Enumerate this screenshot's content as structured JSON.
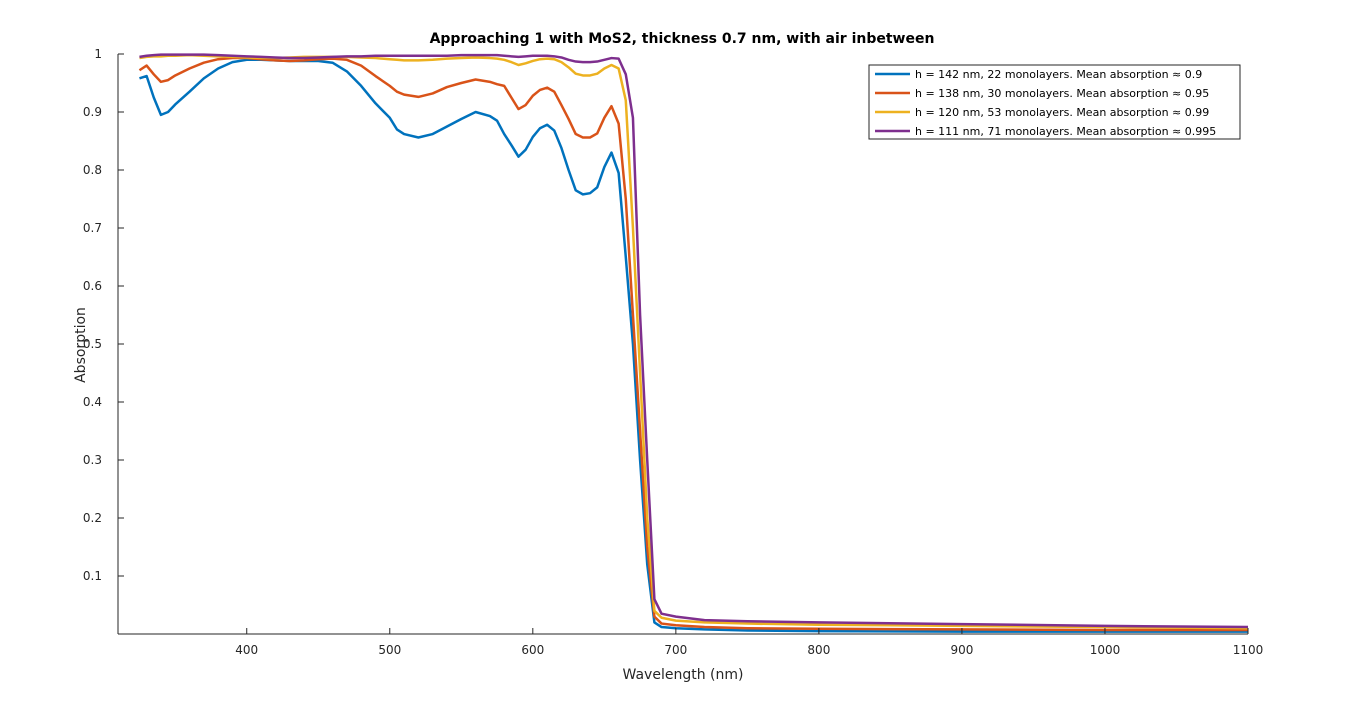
{
  "chart_data": {
    "type": "line",
    "title": "Approaching 1 with MoS2, thickness 0.7 nm, with air inbetween",
    "xlabel": "Wavelength (nm)",
    "ylabel": "Absorption",
    "xlim": [
      310,
      1100
    ],
    "ylim": [
      0,
      1
    ],
    "xticks": [
      400,
      500,
      600,
      700,
      800,
      900,
      1000,
      1100
    ],
    "yticks": [
      0.1,
      0.2,
      0.3,
      0.4,
      0.5,
      0.6,
      0.7,
      0.8,
      0.9,
      1
    ],
    "xtick_labels": [
      "400",
      "500",
      "600",
      "700",
      "800",
      "900",
      "1000",
      "1100"
    ],
    "ytick_labels": [
      "0.1",
      "0.2",
      "0.3",
      "0.4",
      "0.5",
      "0.6",
      "0.7",
      "0.8",
      "0.9",
      "1"
    ],
    "grid": false,
    "legend_position": "top-right",
    "series": [
      {
        "name": "h = 142 nm, 22 monolayers. Mean absorption ≈ 0.9",
        "color": "#0072BD",
        "x": [
          325,
          330,
          335,
          340,
          345,
          350,
          360,
          370,
          380,
          390,
          400,
          410,
          420,
          430,
          440,
          450,
          460,
          470,
          480,
          490,
          500,
          505,
          510,
          520,
          530,
          540,
          550,
          560,
          570,
          575,
          580,
          585,
          590,
          595,
          600,
          605,
          610,
          615,
          620,
          625,
          630,
          635,
          640,
          645,
          650,
          655,
          660,
          665,
          670,
          675,
          680,
          685,
          690,
          700,
          720,
          750,
          800,
          900,
          1000,
          1100
        ],
        "y": [
          0.958,
          0.962,
          0.925,
          0.895,
          0.9,
          0.913,
          0.935,
          0.958,
          0.975,
          0.986,
          0.99,
          0.99,
          0.989,
          0.988,
          0.988,
          0.988,
          0.985,
          0.97,
          0.945,
          0.915,
          0.89,
          0.87,
          0.862,
          0.856,
          0.862,
          0.875,
          0.888,
          0.9,
          0.893,
          0.885,
          0.862,
          0.843,
          0.823,
          0.835,
          0.857,
          0.872,
          0.878,
          0.868,
          0.838,
          0.8,
          0.765,
          0.758,
          0.76,
          0.77,
          0.805,
          0.83,
          0.795,
          0.65,
          0.5,
          0.3,
          0.12,
          0.02,
          0.012,
          0.01,
          0.008,
          0.006,
          0.005,
          0.004,
          0.004,
          0.004
        ]
      },
      {
        "name": "h = 138 nm, 30 monolayers. Mean absorption ≈ 0.95",
        "color": "#D95319",
        "x": [
          325,
          330,
          335,
          340,
          345,
          350,
          360,
          370,
          380,
          390,
          400,
          410,
          420,
          430,
          440,
          450,
          460,
          470,
          480,
          490,
          500,
          505,
          510,
          520,
          530,
          540,
          550,
          560,
          570,
          575,
          580,
          585,
          590,
          595,
          600,
          605,
          610,
          615,
          620,
          625,
          630,
          635,
          640,
          645,
          650,
          655,
          660,
          665,
          670,
          675,
          680,
          685,
          690,
          700,
          720,
          750,
          800,
          900,
          1000,
          1100
        ],
        "y": [
          0.972,
          0.98,
          0.965,
          0.952,
          0.955,
          0.963,
          0.975,
          0.985,
          0.991,
          0.993,
          0.993,
          0.991,
          0.989,
          0.988,
          0.989,
          0.991,
          0.992,
          0.99,
          0.98,
          0.962,
          0.945,
          0.935,
          0.93,
          0.926,
          0.932,
          0.943,
          0.95,
          0.956,
          0.952,
          0.948,
          0.945,
          0.925,
          0.905,
          0.912,
          0.928,
          0.938,
          0.942,
          0.935,
          0.912,
          0.888,
          0.862,
          0.856,
          0.856,
          0.863,
          0.89,
          0.91,
          0.88,
          0.75,
          0.55,
          0.35,
          0.15,
          0.03,
          0.018,
          0.015,
          0.012,
          0.01,
          0.009,
          0.008,
          0.007,
          0.007
        ]
      },
      {
        "name": "h = 120 nm, 53 monolayers. Mean absorption ≈ 0.99",
        "color": "#EDB120",
        "x": [
          325,
          330,
          335,
          340,
          345,
          350,
          360,
          370,
          380,
          390,
          400,
          410,
          420,
          430,
          440,
          450,
          460,
          470,
          480,
          490,
          500,
          505,
          510,
          520,
          530,
          540,
          550,
          560,
          570,
          575,
          580,
          585,
          590,
          595,
          600,
          605,
          610,
          615,
          620,
          625,
          630,
          635,
          640,
          645,
          650,
          655,
          660,
          665,
          670,
          675,
          680,
          685,
          690,
          700,
          720,
          750,
          800,
          900,
          1000,
          1100
        ],
        "y": [
          0.993,
          0.995,
          0.996,
          0.996,
          0.997,
          0.997,
          0.998,
          0.997,
          0.996,
          0.995,
          0.994,
          0.993,
          0.993,
          0.994,
          0.995,
          0.995,
          0.995,
          0.995,
          0.994,
          0.993,
          0.991,
          0.99,
          0.989,
          0.989,
          0.99,
          0.992,
          0.993,
          0.994,
          0.993,
          0.992,
          0.99,
          0.986,
          0.981,
          0.984,
          0.988,
          0.991,
          0.992,
          0.991,
          0.986,
          0.977,
          0.966,
          0.963,
          0.963,
          0.966,
          0.975,
          0.981,
          0.975,
          0.92,
          0.7,
          0.45,
          0.2,
          0.04,
          0.028,
          0.023,
          0.02,
          0.018,
          0.016,
          0.014,
          0.012,
          0.01
        ]
      },
      {
        "name": "h = 111 nm, 71 monolayers. Mean absorption ≈ 0.995",
        "color": "#7E2F8E",
        "x": [
          325,
          330,
          335,
          340,
          345,
          350,
          360,
          370,
          380,
          390,
          400,
          410,
          420,
          430,
          440,
          450,
          460,
          470,
          480,
          490,
          500,
          505,
          510,
          520,
          530,
          540,
          550,
          560,
          570,
          575,
          580,
          585,
          590,
          595,
          600,
          605,
          610,
          615,
          620,
          625,
          630,
          635,
          640,
          645,
          650,
          655,
          660,
          665,
          670,
          675,
          680,
          685,
          690,
          700,
          720,
          750,
          800,
          900,
          1000,
          1100
        ],
        "y": [
          0.995,
          0.997,
          0.998,
          0.999,
          0.999,
          0.999,
          0.999,
          0.999,
          0.998,
          0.997,
          0.996,
          0.995,
          0.994,
          0.993,
          0.993,
          0.994,
          0.995,
          0.996,
          0.996,
          0.997,
          0.997,
          0.997,
          0.997,
          0.997,
          0.997,
          0.997,
          0.998,
          0.998,
          0.998,
          0.998,
          0.997,
          0.996,
          0.995,
          0.996,
          0.997,
          0.997,
          0.997,
          0.996,
          0.994,
          0.99,
          0.987,
          0.986,
          0.986,
          0.987,
          0.99,
          0.993,
          0.992,
          0.965,
          0.89,
          0.55,
          0.3,
          0.06,
          0.035,
          0.03,
          0.024,
          0.022,
          0.02,
          0.017,
          0.014,
          0.012
        ]
      }
    ]
  }
}
